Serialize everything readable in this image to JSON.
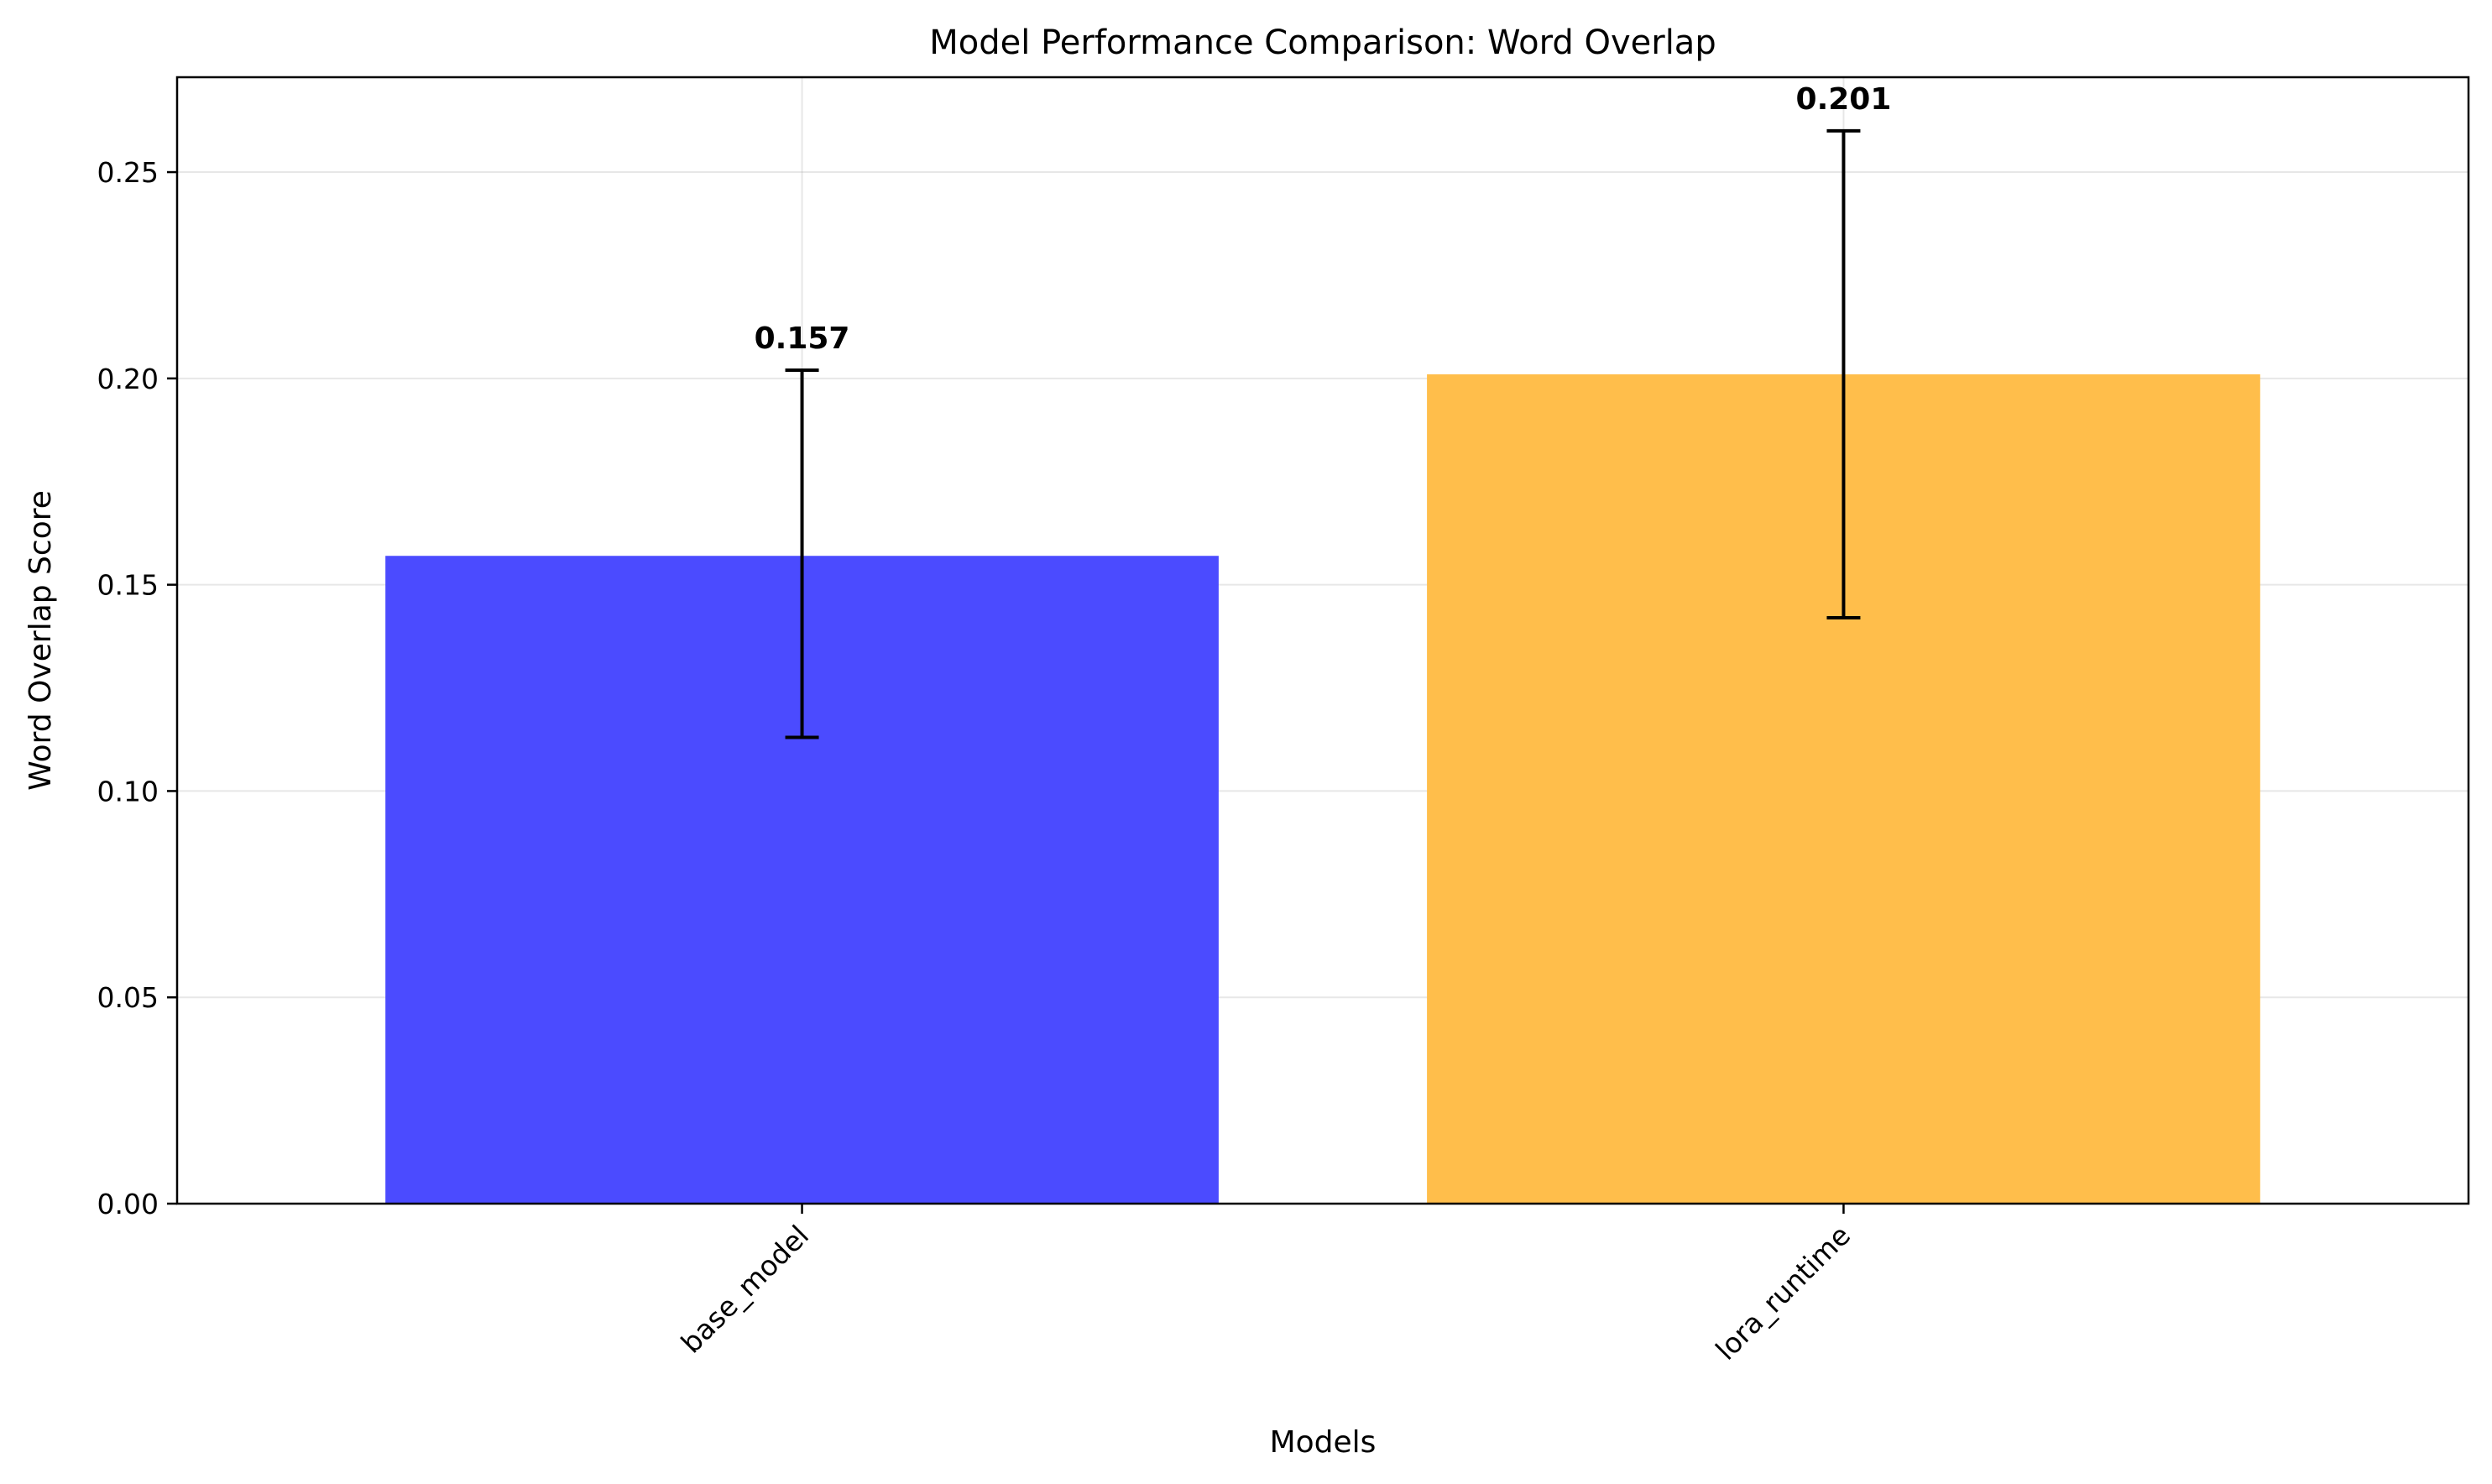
{
  "chart_data": {
    "type": "bar",
    "title": "Model Performance Comparison: Word Overlap",
    "xlabel": "Models",
    "ylabel": "Word Overlap Score",
    "categories": [
      "base_model",
      "lora_runtime"
    ],
    "values": [
      0.157,
      0.201
    ],
    "value_labels": [
      "0.157",
      "0.201"
    ],
    "error_low": [
      0.113,
      0.142
    ],
    "error_high": [
      0.202,
      0.26
    ],
    "colors": [
      "#4b4bff",
      "#ffbe4b"
    ],
    "ylim": [
      0,
      0.273
    ],
    "yticks": [
      0.0,
      0.05,
      0.1,
      0.15,
      0.2,
      0.25
    ],
    "ytick_labels": [
      "0.00",
      "0.05",
      "0.10",
      "0.15",
      "0.20",
      "0.25"
    ],
    "grid": true,
    "legend": "none"
  }
}
